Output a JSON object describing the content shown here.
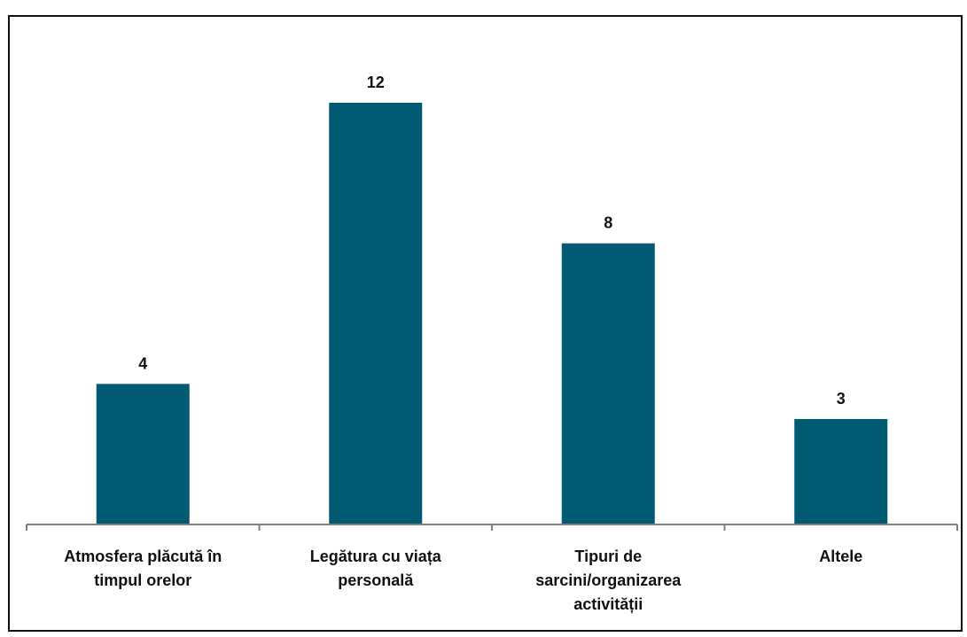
{
  "chart_data": {
    "type": "bar",
    "title": "",
    "xlabel": "",
    "ylabel": "",
    "categories": [
      [
        "Atmosfera plăcută în",
        "timpul orelor"
      ],
      [
        "Legătura cu viața",
        "personală"
      ],
      [
        "Tipuri de",
        "sarcini/organizarea",
        "activității"
      ],
      [
        "Altele"
      ]
    ],
    "values": [
      4,
      12,
      8,
      3
    ],
    "data_labels": [
      "4",
      "12",
      "8",
      "3"
    ],
    "ylim": [
      0,
      12
    ],
    "grid": false,
    "legend": "none",
    "bar_color": "#005a72",
    "axis_color": "#7f7f7f"
  }
}
